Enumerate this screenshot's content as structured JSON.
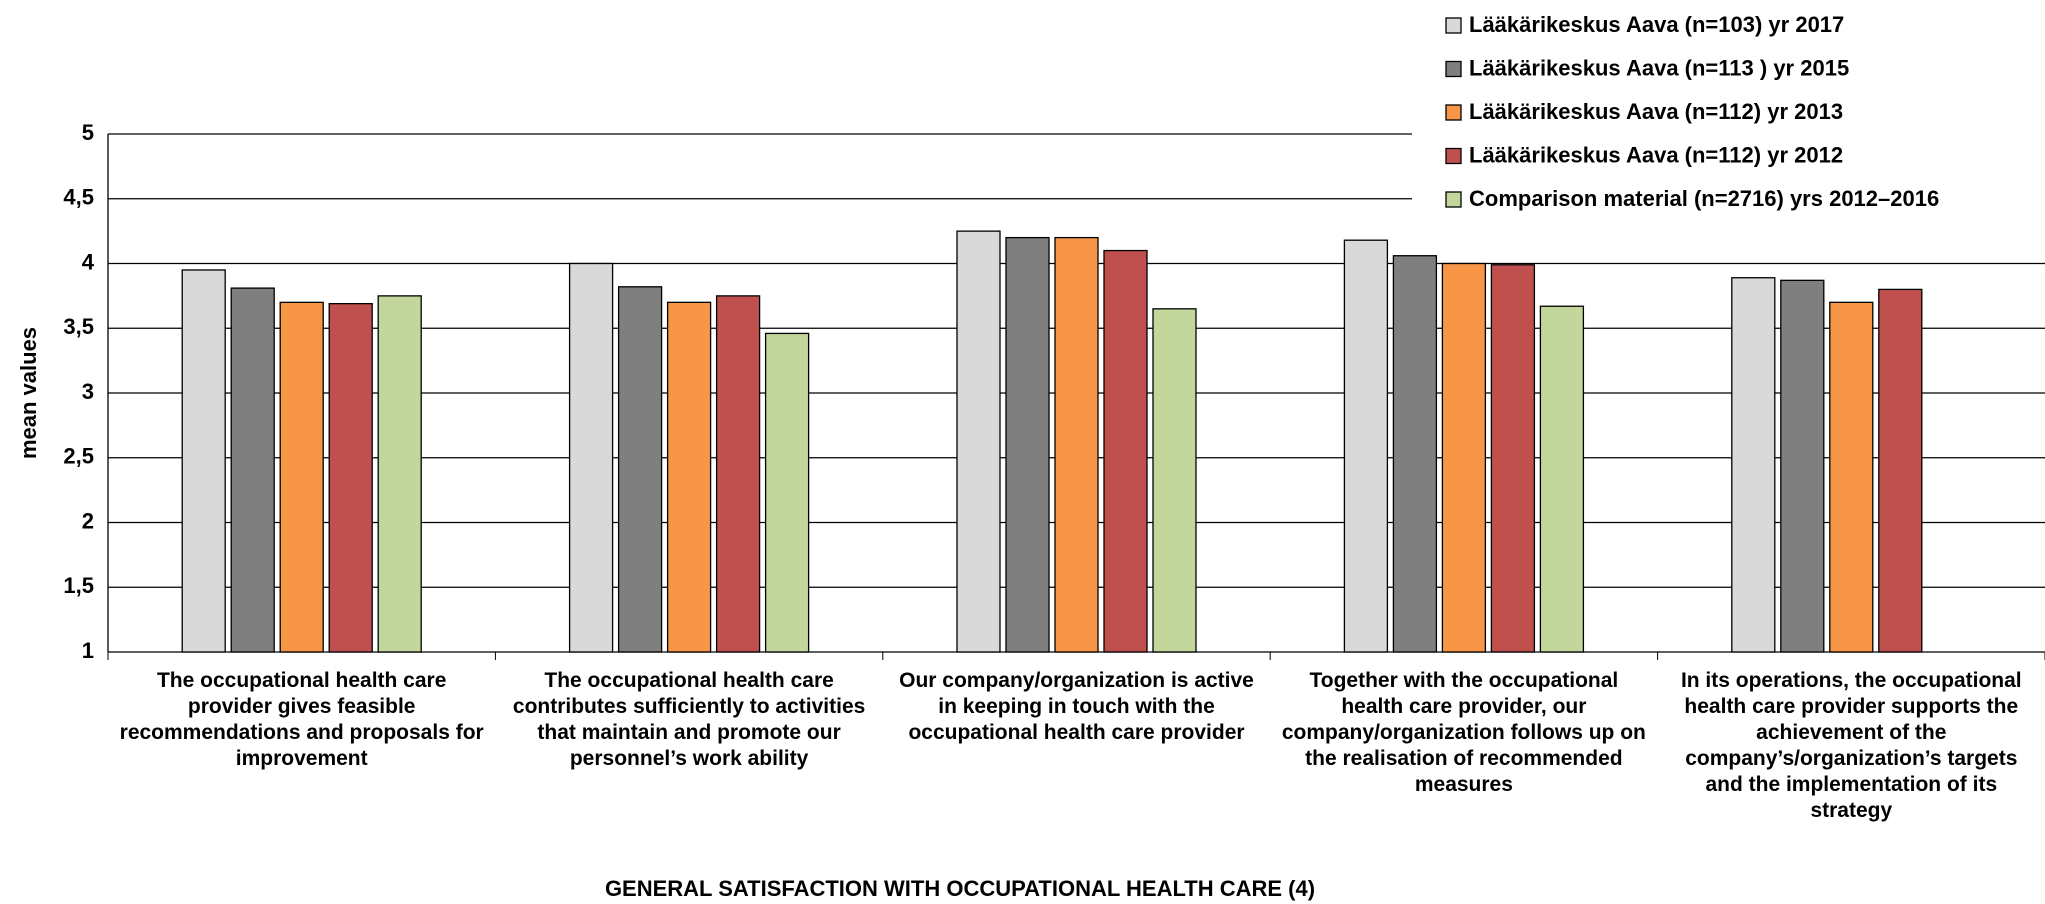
{
  "chart_data": {
    "type": "bar",
    "x_label": "GENERAL SATISFACTION WITH OCCUPATIONAL HEALTH CARE (4)",
    "y_label": "mean values",
    "categories": [
      "The occupational health care provider gives feasible recommendations and proposals for improvement",
      "The occupational health care contributes sufficiently to activities that maintain and promote our personnel’s work ability",
      "Our company/organization is active in keeping in touch with the occupational health care provider",
      "Together with the occupational health care provider, our company/organization follows up on the realisation of recommended measures",
      "In its operations, the occupational health care provider supports the achievement of the company’s/organization’s targets and the implementation of its strategy"
    ],
    "series": [
      {
        "name": "Lääkärikeskus Aava (n=103)  yr 2017",
        "color": "#d9d9d9",
        "values": [
          3.95,
          4.0,
          4.25,
          4.18,
          3.89
        ]
      },
      {
        "name": "Lääkärikeskus Aava (n=113 ) yr 2015",
        "color": "#7f7f7f",
        "values": [
          3.81,
          3.82,
          4.2,
          4.06,
          3.87
        ]
      },
      {
        "name": "Lääkärikeskus Aava (n=112)  yr 2013",
        "color": "#f79646",
        "values": [
          3.7,
          3.7,
          4.2,
          4.0,
          3.7
        ]
      },
      {
        "name": "Lääkärikeskus Aava (n=112)  yr 2012",
        "color": "#c0504d",
        "values": [
          3.69,
          3.75,
          4.1,
          3.99,
          3.8
        ]
      },
      {
        "name": "Comparison material (n=2716)  yrs 2012–2016",
        "color": "#c3d69b",
        "values": [
          3.75,
          3.46,
          3.65,
          3.67,
          null
        ]
      }
    ],
    "ylim": [
      1,
      5
    ],
    "yticks": [
      1,
      {
        "value": 1.5,
        "label": "1,5"
      },
      2,
      {
        "value": 2.5,
        "label": "2,5"
      },
      3,
      {
        "value": 3.5,
        "label": "3,5"
      },
      4,
      {
        "value": 4.5,
        "label": "4,5"
      },
      5
    ],
    "grid": true,
    "legend": "top-right"
  }
}
